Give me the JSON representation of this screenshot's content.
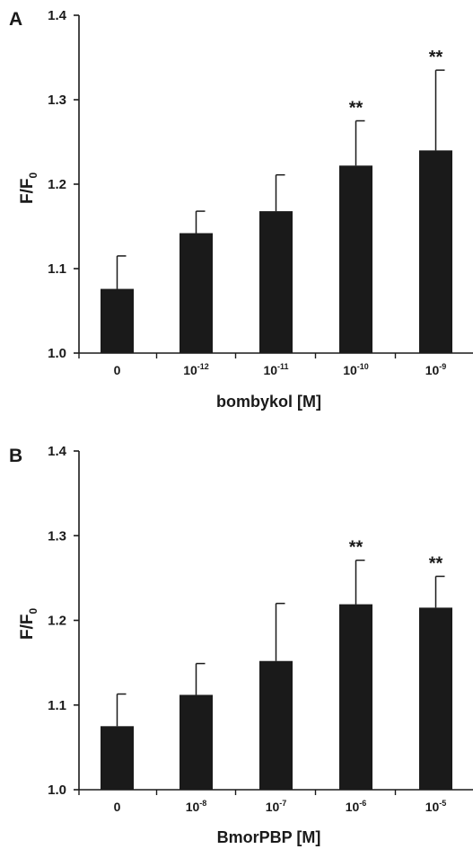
{
  "chart_data": [
    {
      "panel": "A",
      "type": "bar",
      "ylabel": "F/F",
      "ylabel_sub": "0",
      "xlabel": "bombykol [M]",
      "categories": [
        {
          "base": "0",
          "exp": ""
        },
        {
          "base": "10",
          "exp": "-12"
        },
        {
          "base": "10",
          "exp": "-11"
        },
        {
          "base": "10",
          "exp": "-10"
        },
        {
          "base": "10",
          "exp": "-9"
        }
      ],
      "values": [
        1.076,
        1.142,
        1.168,
        1.222,
        1.24
      ],
      "errors": [
        0.039,
        0.026,
        0.043,
        0.053,
        0.095
      ],
      "significance": [
        "",
        "",
        "",
        "**",
        "**"
      ],
      "ylim": [
        1.0,
        1.4
      ],
      "yticks": [
        "1.0",
        "1.1",
        "1.2",
        "1.3",
        "1.4"
      ],
      "bar_color": "#1a1a1a"
    },
    {
      "panel": "B",
      "type": "bar",
      "ylabel": "F/F",
      "ylabel_sub": "0",
      "xlabel": "BmorPBP [M]",
      "categories": [
        {
          "base": "0",
          "exp": ""
        },
        {
          "base": "10",
          "exp": "-8"
        },
        {
          "base": "10",
          "exp": "-7"
        },
        {
          "base": "10",
          "exp": "-6"
        },
        {
          "base": "10",
          "exp": "-5"
        }
      ],
      "values": [
        1.075,
        1.112,
        1.152,
        1.219,
        1.215
      ],
      "errors": [
        0.038,
        0.037,
        0.068,
        0.052,
        0.037
      ],
      "significance": [
        "",
        "",
        "",
        "**",
        "**"
      ],
      "ylim": [
        1.0,
        1.4
      ],
      "yticks": [
        "1.0",
        "1.1",
        "1.2",
        "1.3",
        "1.4"
      ],
      "bar_color": "#1a1a1a"
    }
  ]
}
